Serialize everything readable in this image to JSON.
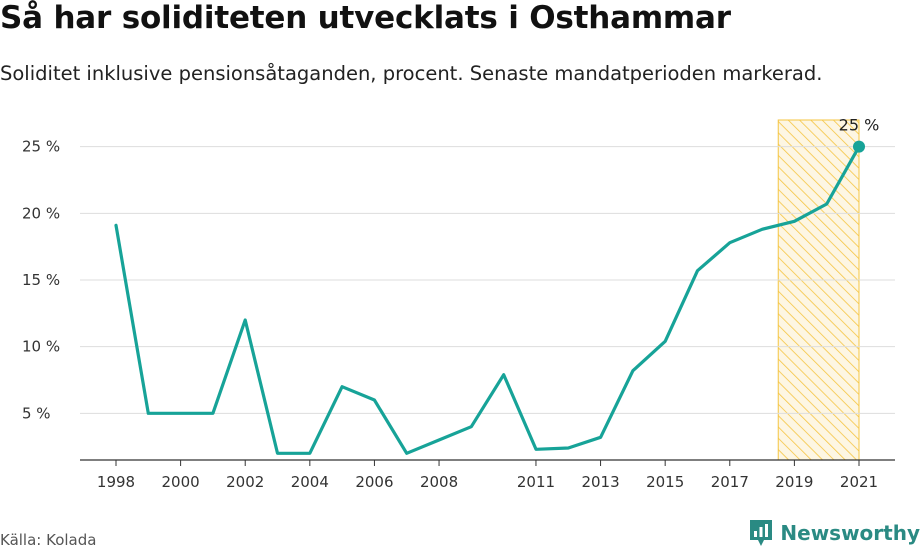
{
  "header": {
    "title": "Så har soliditeten utvecklats i Osthammar",
    "subtitle": "Soliditet inklusive pensionsåtaganden, procent. Senaste mandatperioden markerad."
  },
  "footer": {
    "source": "Källa: Kolada",
    "brand": "Newsworthy"
  },
  "colors": {
    "line": "#17a398",
    "highlight": "#f5c542",
    "grid": "#dddddd"
  },
  "icons": {
    "brand": "newsworthy-logo-icon"
  },
  "chart_data": {
    "type": "line",
    "x": [
      1998,
      1999,
      2000,
      2001,
      2002,
      2003,
      2004,
      2005,
      2006,
      2007,
      2008,
      2009,
      2010,
      2011,
      2012,
      2013,
      2014,
      2015,
      2016,
      2017,
      2018,
      2019,
      2020,
      2021
    ],
    "values": [
      19.1,
      5.0,
      5.0,
      5.0,
      12.0,
      2.0,
      2.0,
      7.0,
      6.0,
      2.0,
      3.0,
      4.0,
      7.9,
      2.3,
      2.4,
      3.2,
      8.2,
      10.4,
      15.7,
      17.8,
      18.8,
      19.4,
      20.7,
      25.0
    ],
    "xticks": [
      "1998",
      "2000",
      "2002",
      "2004",
      "2006",
      "2008",
      "2011",
      "2013",
      "2015",
      "2017",
      "2019",
      "2021"
    ],
    "yticks": [
      5,
      10,
      15,
      20,
      25
    ],
    "ytick_labels": [
      "5 %",
      "10 %",
      "15 %",
      "20 %",
      "25 %"
    ],
    "ylim": [
      1.5,
      27
    ],
    "highlight_range": [
      2018.5,
      2021
    ],
    "end_label": "25 %",
    "grid": true
  }
}
